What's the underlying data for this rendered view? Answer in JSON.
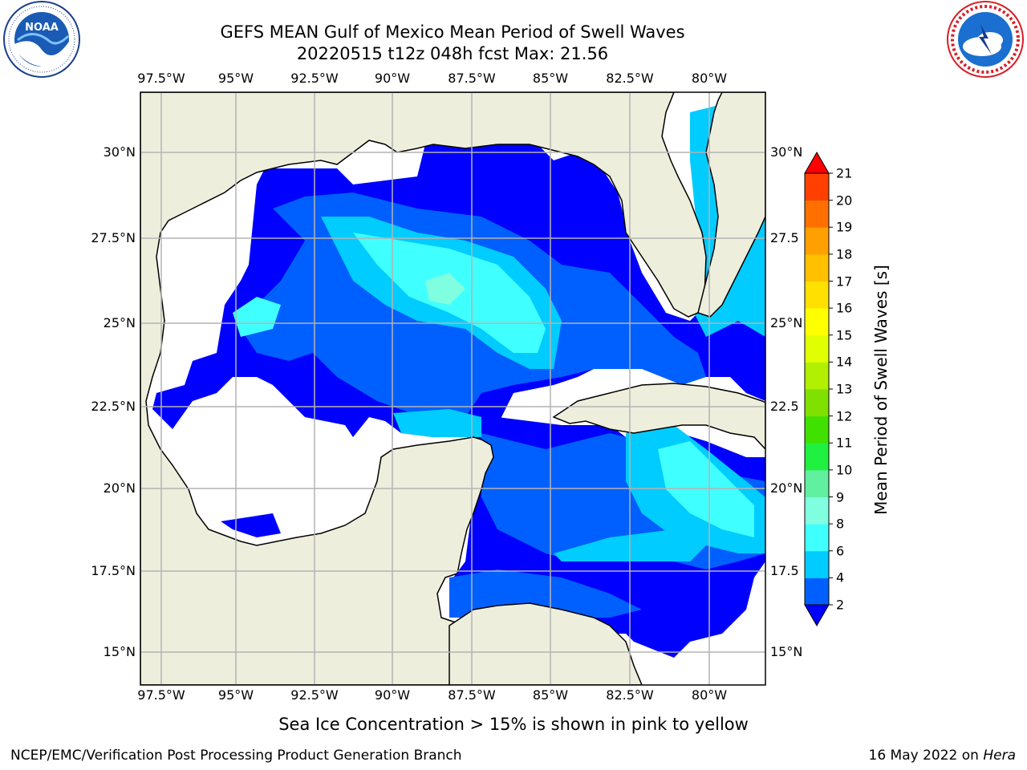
{
  "header": {
    "title_line1": "GEFS MEAN Gulf of Mexico Mean Period of Swell Waves",
    "title_line2": "20220515 t12z 048h fcst   Max: 21.56"
  },
  "logos": {
    "left": {
      "text": "NOAA",
      "ring_text": "NATIONAL OCEANIC AND ATMOSPHERIC ADMINISTRATION · U.S. DEPARTMENT OF COMMERCE",
      "icon": "noaa-logo-icon"
    },
    "right": {
      "ring_text": "NATIONAL WEATHER SERVICE",
      "icon": "nws-logo-icon"
    }
  },
  "map": {
    "lon_ticks": [
      "97.5°W",
      "95°W",
      "92.5°W",
      "90°W",
      "87.5°W",
      "85°W",
      "82.5°W",
      "80°W"
    ],
    "lat_ticks_left": [
      "30°N",
      "27.5°N",
      "25°N",
      "22.5°N",
      "20°N",
      "17.5°N",
      "15°N"
    ],
    "lat_ticks_right": [
      "30°N",
      "27.5",
      "25°N",
      "22.5",
      "20°N",
      "17.5",
      "15°N"
    ],
    "land_color": "#eeeedd",
    "grid_color": "#b4b4b4"
  },
  "colorbar": {
    "label": "Mean Period of Swell Waves [s]",
    "tick_labels": [
      "2",
      "4",
      "6",
      "8",
      "9",
      "10",
      "11",
      "12",
      "13",
      "14",
      "15",
      "16",
      "17",
      "18",
      "19",
      "20",
      "21"
    ],
    "colors": [
      "#0060ff",
      "#00ccff",
      "#40ffff",
      "#80ffe0",
      "#60f0a0",
      "#20f040",
      "#40e000",
      "#80e000",
      "#b0f000",
      "#e0ff00",
      "#ffff00",
      "#ffe000",
      "#ffc000",
      "#ffa000",
      "#ff7000",
      "#ff4000",
      "#ff1000"
    ],
    "under_color": "#0000ff",
    "over_color": "#ff0000"
  },
  "note": "Sea Ice Concentration > 15% is shown in pink to yellow",
  "footer": {
    "left": "NCEP/EMC/Verification Post Processing Product Generation Branch",
    "right_prefix": "16 May 2022 on",
    "right_machine": "Hera"
  }
}
